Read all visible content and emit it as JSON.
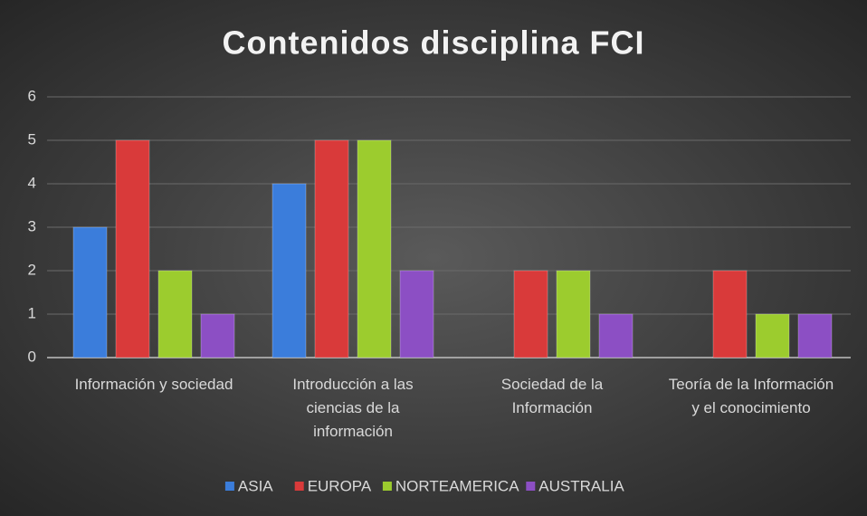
{
  "chart_data": {
    "type": "bar",
    "title": "Contenidos disciplina FCI",
    "categories": [
      "Información y sociedad",
      "Introducción a las ciencias de la información",
      "Sociedad de la Información",
      "Teoría de la Información y el conocimiento"
    ],
    "series": [
      {
        "name": "ASIA",
        "color": "#3b7ddb",
        "values": [
          3,
          4,
          0,
          0
        ]
      },
      {
        "name": "EUROPA",
        "color": "#d93a3a",
        "values": [
          5,
          5,
          2,
          2
        ]
      },
      {
        "name": "NORTEAMERICA",
        "color": "#9ccc2e",
        "values": [
          2,
          5,
          2,
          1
        ]
      },
      {
        "name": "AUSTRALIA",
        "color": "#8c4fc4",
        "values": [
          1,
          2,
          1,
          1
        ]
      }
    ],
    "ylim": [
      0,
      6
    ],
    "yticks": [
      0,
      1,
      2,
      3,
      4,
      5,
      6
    ],
    "grid": true,
    "legend": "bottom"
  }
}
